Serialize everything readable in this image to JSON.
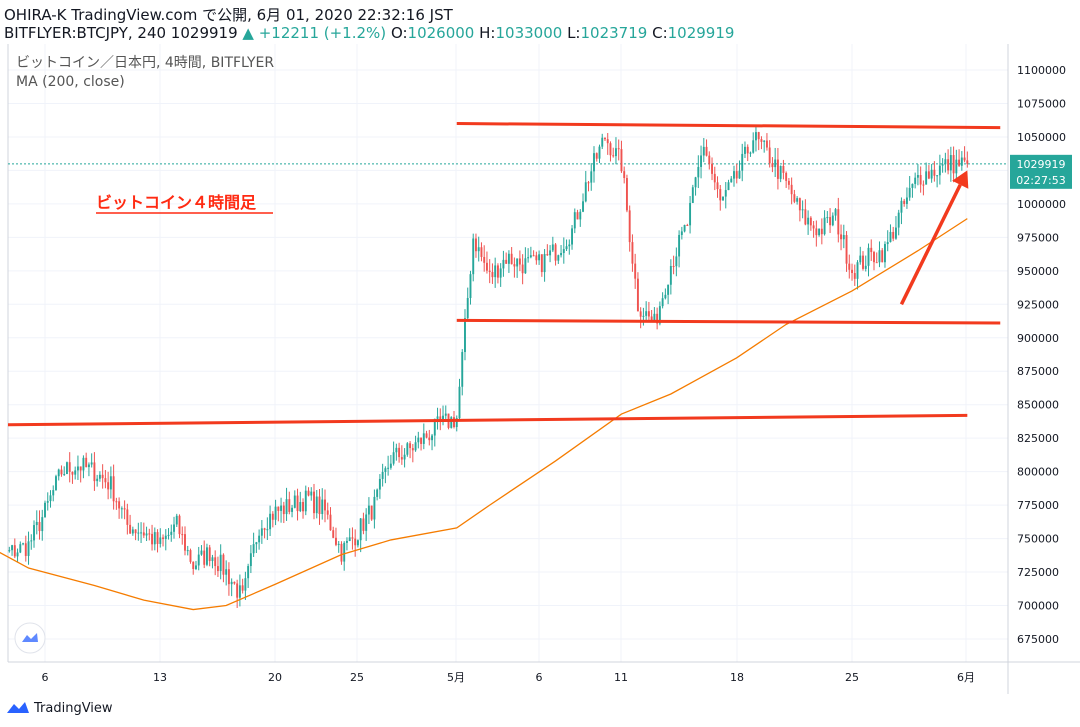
{
  "header": {
    "line1": "OHIRA-K TradingView.com で公開, 6月 01, 2020 22:32:16 JST",
    "symbol": "BITFLYER:BTCJPY, 240 1029919",
    "change": "▲ +12211 (+1.2%)",
    "o_label": "O:",
    "o_value": "1026000",
    "h_label": "H:",
    "h_value": "1033000",
    "l_label": "L:",
    "l_value": "1023719",
    "c_label": "C:",
    "c_value": "1029919"
  },
  "legend": {
    "title": "ビットコイン／日本円, 4時間, BITFLYER",
    "ma": "MA (200, close)"
  },
  "annotation": {
    "label": "ビットコイン４時間足"
  },
  "price_badge": {
    "value": "1029919",
    "countdown": "02:27:53"
  },
  "footer": {
    "brand": "TradingView"
  },
  "colors": {
    "up": "#26a69a",
    "down": "#ef5350",
    "ma": "#f57c00",
    "drawing": "#f23a1e",
    "price_line": "#26a69a",
    "label": "#ff2a12"
  },
  "icons": {
    "footer_logo": "tradingview-logo-icon",
    "chart_logo": "tradingview-watermark-icon"
  },
  "chart_data": {
    "type": "candlestick",
    "title": "ビットコイン／日本円, 4時間, BITFLYER",
    "interval": "4h",
    "ylim": [
      650000,
      1110000
    ],
    "y_ticks": [
      675000,
      700000,
      725000,
      750000,
      775000,
      800000,
      825000,
      850000,
      875000,
      900000,
      925000,
      950000,
      975000,
      1000000,
      1025000,
      1050000,
      1075000,
      1100000
    ],
    "x_ticks": [
      "6",
      "13",
      "20",
      "25",
      "5月",
      "6",
      "11",
      "18",
      "25",
      "6月"
    ],
    "close_path": [
      {
        "date": "2020-04-02",
        "close": 750000
      },
      {
        "date": "2020-04-03",
        "close": 735000
      },
      {
        "date": "2020-04-04",
        "close": 740000
      },
      {
        "date": "2020-04-05",
        "close": 745000
      },
      {
        "date": "2020-04-06",
        "close": 770000
      },
      {
        "date": "2020-04-07",
        "close": 800000
      },
      {
        "date": "2020-04-08",
        "close": 805000
      },
      {
        "date": "2020-04-09",
        "close": 800000
      },
      {
        "date": "2020-04-10",
        "close": 790000
      },
      {
        "date": "2020-04-11",
        "close": 760000
      },
      {
        "date": "2020-04-12",
        "close": 755000
      },
      {
        "date": "2020-04-13",
        "close": 745000
      },
      {
        "date": "2020-04-14",
        "close": 760000
      },
      {
        "date": "2020-04-15",
        "close": 730000
      },
      {
        "date": "2020-04-16",
        "close": 740000
      },
      {
        "date": "2020-04-17",
        "close": 725000
      },
      {
        "date": "2020-04-18",
        "close": 705000
      },
      {
        "date": "2020-04-19",
        "close": 760000
      },
      {
        "date": "2020-04-20",
        "close": 770000
      },
      {
        "date": "2020-04-21",
        "close": 775000
      },
      {
        "date": "2020-04-22",
        "close": 780000
      },
      {
        "date": "2020-04-23",
        "close": 770000
      },
      {
        "date": "2020-04-24",
        "close": 740000
      },
      {
        "date": "2020-04-25",
        "close": 755000
      },
      {
        "date": "2020-04-26",
        "close": 775000
      },
      {
        "date": "2020-04-27",
        "close": 810000
      },
      {
        "date": "2020-04-28",
        "close": 815000
      },
      {
        "date": "2020-04-29",
        "close": 825000
      },
      {
        "date": "2020-04-30",
        "close": 835000
      },
      {
        "date": "2020-05-01",
        "close": 840000
      },
      {
        "date": "2020-05-02",
        "close": 975000
      },
      {
        "date": "2020-05-03",
        "close": 945000
      },
      {
        "date": "2020-05-04",
        "close": 960000
      },
      {
        "date": "2020-05-05",
        "close": 955000
      },
      {
        "date": "2020-05-06",
        "close": 955000
      },
      {
        "date": "2020-05-07",
        "close": 965000
      },
      {
        "date": "2020-05-08",
        "close": 980000
      },
      {
        "date": "2020-05-09",
        "close": 1020000
      },
      {
        "date": "2020-05-10",
        "close": 1050000
      },
      {
        "date": "2020-05-11",
        "close": 1030000
      },
      {
        "date": "2020-05-12",
        "close": 925000
      },
      {
        "date": "2020-05-13",
        "close": 910000
      },
      {
        "date": "2020-05-14",
        "close": 955000
      },
      {
        "date": "2020-05-15",
        "close": 985000
      },
      {
        "date": "2020-05-16",
        "close": 1045000
      },
      {
        "date": "2020-05-17",
        "close": 1000000
      },
      {
        "date": "2020-05-18",
        "close": 1020000
      },
      {
        "date": "2020-05-19",
        "close": 1050000
      },
      {
        "date": "2020-05-20",
        "close": 1035000
      },
      {
        "date": "2020-05-21",
        "close": 1015000
      },
      {
        "date": "2020-05-22",
        "close": 990000
      },
      {
        "date": "2020-05-23",
        "close": 980000
      },
      {
        "date": "2020-05-24",
        "close": 990000
      },
      {
        "date": "2020-05-25",
        "close": 950000
      },
      {
        "date": "2020-05-26",
        "close": 960000
      },
      {
        "date": "2020-05-27",
        "close": 965000
      },
      {
        "date": "2020-05-28",
        "close": 995000
      },
      {
        "date": "2020-05-29",
        "close": 1020000
      },
      {
        "date": "2020-05-30",
        "close": 1025000
      },
      {
        "date": "2020-05-31",
        "close": 1030000
      },
      {
        "date": "2020-06-01",
        "close": 1029919
      }
    ],
    "ma200": [
      {
        "date": "2020-04-02",
        "value": 748000
      },
      {
        "date": "2020-04-05",
        "value": 728000
      },
      {
        "date": "2020-04-09",
        "value": 715000
      },
      {
        "date": "2020-04-12",
        "value": 704000
      },
      {
        "date": "2020-04-15",
        "value": 697000
      },
      {
        "date": "2020-04-17",
        "value": 700000
      },
      {
        "date": "2020-04-20",
        "value": 716000
      },
      {
        "date": "2020-04-24",
        "value": 738000
      },
      {
        "date": "2020-04-27",
        "value": 749000
      },
      {
        "date": "2020-05-01",
        "value": 758000
      },
      {
        "date": "2020-05-03",
        "value": 775000
      },
      {
        "date": "2020-05-07",
        "value": 808000
      },
      {
        "date": "2020-05-11",
        "value": 843000
      },
      {
        "date": "2020-05-14",
        "value": 858000
      },
      {
        "date": "2020-05-18",
        "value": 885000
      },
      {
        "date": "2020-05-21",
        "value": 910000
      },
      {
        "date": "2020-05-25",
        "value": 935000
      },
      {
        "date": "2020-05-29",
        "value": 965000
      },
      {
        "date": "2020-06-01",
        "value": 989000
      }
    ],
    "trendlines": [
      {
        "from": {
          "date": "2020-05-01",
          "price": 1060000
        },
        "to": {
          "date": "2020-06-03",
          "price": 1057000
        }
      },
      {
        "from": {
          "date": "2020-05-01",
          "price": 913000
        },
        "to": {
          "date": "2020-06-03",
          "price": 911000
        }
      },
      {
        "from": {
          "date": "2020-04-01",
          "price": 835000
        },
        "to": {
          "date": "2020-06-01",
          "price": 842000
        }
      }
    ],
    "arrow": {
      "from": {
        "date": "2020-05-28",
        "price": 925000
      },
      "to": {
        "date": "2020-06-01",
        "price": 1025000
      }
    },
    "last_price": 1029919
  }
}
